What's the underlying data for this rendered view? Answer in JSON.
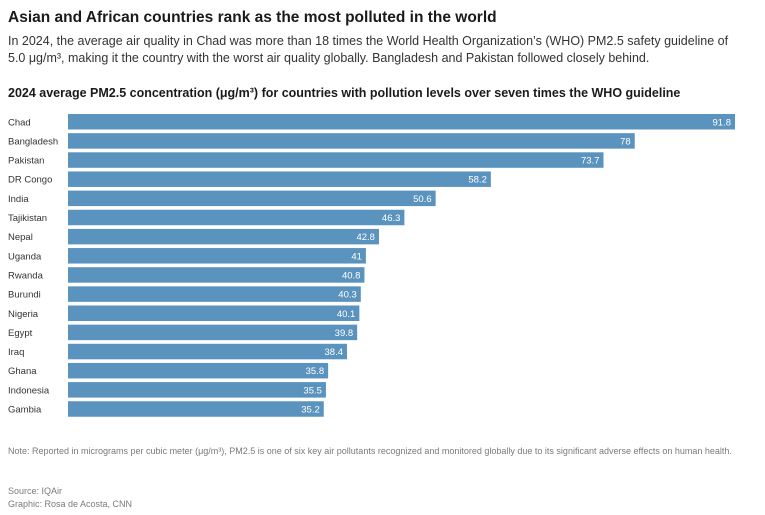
{
  "headline": "Asian and African countries rank as the most polluted in the world",
  "subhead": "In 2024, the average air quality in Chad was more than 18 times the World Health Organization’s (WHO) PM2.5 safety guideline of 5.0 μg/m³, making it the country with the worst air quality globally. Bangladesh and Pakistan followed closely behind.",
  "footer": {
    "note": "Note: Reported in micrograms per cubic meter (μg/m³), PM2.5 is one of six key air pollutants recognized and monitored globally due to its significant adverse effects on human health.",
    "source": "Source: IQAir",
    "credit": "Graphic: Rosa de Acosta, CNN"
  },
  "colors": {
    "bar": "#5b93bf",
    "value_text": "#ffffff"
  },
  "chart_data": {
    "type": "bar",
    "orientation": "horizontal",
    "title": "2024 average PM2.5 concentration (μg/m³) for countries with pollution levels over seven times the WHO guideline",
    "xlabel": "",
    "ylabel": "",
    "xlim": [
      0,
      91.8
    ],
    "grid": false,
    "legend": "none",
    "categories": [
      "Chad",
      "Bangladesh",
      "Pakistan",
      "DR Congo",
      "India",
      "Tajikistan",
      "Nepal",
      "Uganda",
      "Rwanda",
      "Burundi",
      "Nigeria",
      "Egypt",
      "Iraq",
      "Ghana",
      "Indonesia",
      "Gambia"
    ],
    "values": [
      91.8,
      78,
      73.7,
      58.2,
      50.6,
      46.3,
      42.8,
      41,
      40.8,
      40.3,
      40.1,
      39.8,
      38.4,
      35.8,
      35.5,
      35.2
    ],
    "value_labels": [
      "91.8",
      "78",
      "73.7",
      "58.2",
      "50.6",
      "46.3",
      "42.8",
      "41",
      "40.8",
      "40.3",
      "40.1",
      "39.8",
      "38.4",
      "35.8",
      "35.5",
      "35.2"
    ]
  }
}
